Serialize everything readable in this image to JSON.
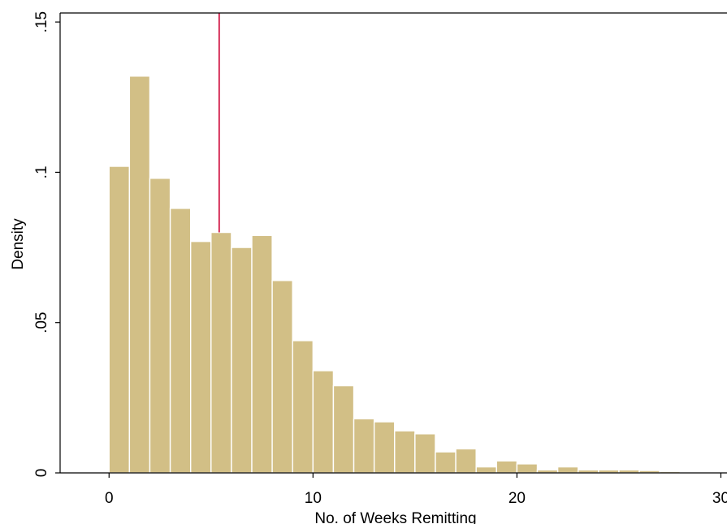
{
  "chart_data": {
    "type": "bar",
    "title": "",
    "xlabel": "No. of Weeks Remitting",
    "ylabel": "Density",
    "xlim": [
      -2.4,
      30.3
    ],
    "ylim": [
      0,
      0.153
    ],
    "x_ticks": [
      0,
      10,
      20,
      30
    ],
    "x_tick_labels": [
      "0",
      "10",
      "20",
      "30"
    ],
    "y_ticks": [
      0,
      0.05,
      0.1,
      0.15
    ],
    "y_tick_labels": [
      "0",
      ".05",
      ".1",
      ".15"
    ],
    "bin_width": 1,
    "series": [
      {
        "bins_start": [
          0,
          1,
          2,
          3,
          4,
          5,
          6,
          7,
          8,
          9,
          10,
          11,
          12,
          13,
          14,
          15,
          16,
          17,
          18,
          19,
          20,
          21,
          22,
          23,
          24,
          25,
          26,
          27
        ],
        "values": [
          0.102,
          0.132,
          0.098,
          0.088,
          0.077,
          0.08,
          0.075,
          0.079,
          0.064,
          0.044,
          0.034,
          0.029,
          0.018,
          0.017,
          0.014,
          0.013,
          0.007,
          0.008,
          0.002,
          0.004,
          0.003,
          0.001,
          0.002,
          0.001,
          0.001,
          0.001,
          0.0008,
          0.0005
        ],
        "color": "#d2bf86"
      }
    ],
    "reference_line": {
      "x": 5.4,
      "color": "#cc0033"
    },
    "grid": false,
    "legend": "none"
  }
}
